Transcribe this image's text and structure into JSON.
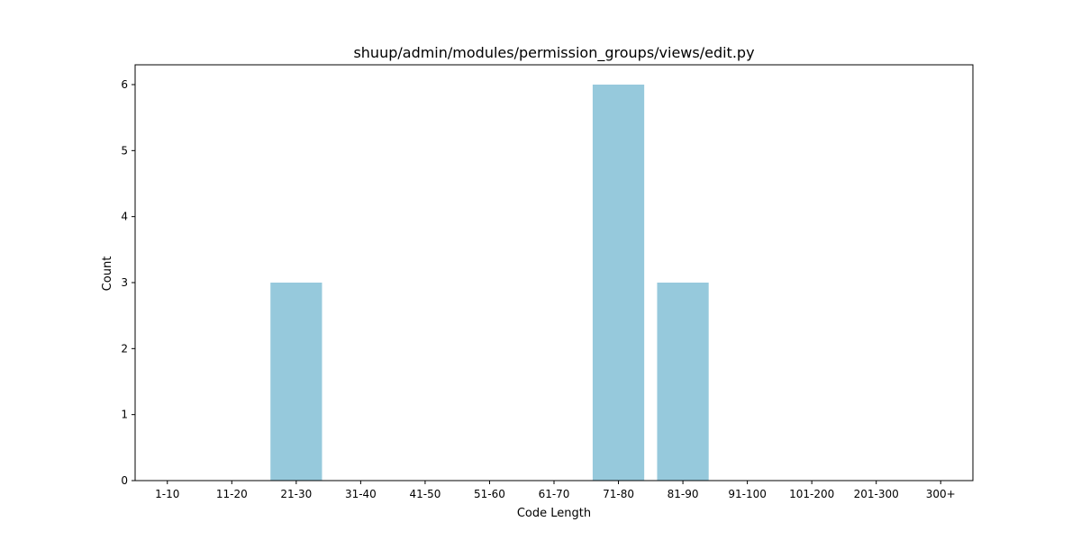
{
  "chart_data": {
    "type": "bar",
    "title": "shuup/admin/modules/permission_groups/views/edit.py",
    "xlabel": "Code Length",
    "ylabel": "Count",
    "categories": [
      "1-10",
      "11-20",
      "21-30",
      "31-40",
      "41-50",
      "51-60",
      "61-70",
      "71-80",
      "81-90",
      "91-100",
      "101-200",
      "201-300",
      "300+"
    ],
    "values": [
      0,
      0,
      3,
      0,
      0,
      0,
      0,
      6,
      3,
      0,
      0,
      0,
      0
    ],
    "ylim": [
      0,
      6.3
    ],
    "yticks": [
      "0",
      "1",
      "2",
      "3",
      "4",
      "5",
      "6"
    ],
    "bar_color": "#96c9dc",
    "grid": false,
    "legend": "none"
  }
}
